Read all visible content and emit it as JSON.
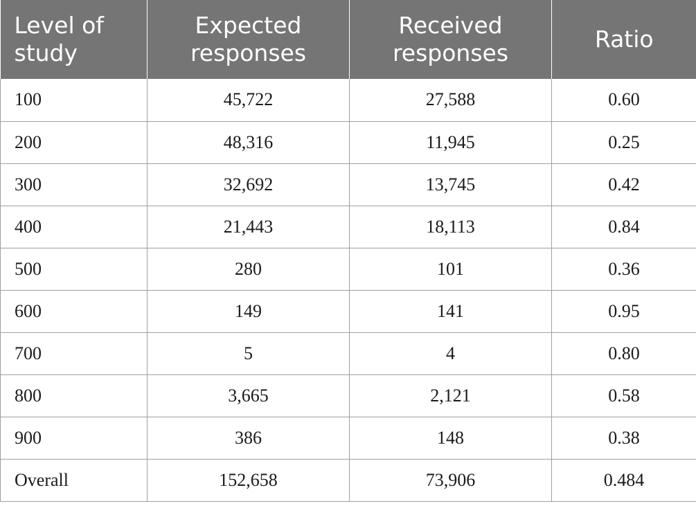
{
  "table": {
    "headers": [
      "Level of study",
      "Expected responses",
      "Received responses",
      "Ratio"
    ],
    "header_lines": [
      [
        "Level of",
        "study"
      ],
      [
        "Expected",
        "responses"
      ],
      [
        "Received",
        "responses"
      ],
      [
        "Ratio"
      ]
    ],
    "rows": [
      [
        "100",
        "45,722",
        "27,588",
        "0.60"
      ],
      [
        "200",
        "48,316",
        "11,945",
        "0.25"
      ],
      [
        "300",
        "32,692",
        "13,745",
        "0.42"
      ],
      [
        "400",
        "21,443",
        "18,113",
        "0.84"
      ],
      [
        "500",
        "280",
        "101",
        "0.36"
      ],
      [
        "600",
        "149",
        "141",
        "0.95"
      ],
      [
        "700",
        "5",
        "4",
        "0.80"
      ],
      [
        "800",
        "3,665",
        "2,121",
        "0.58"
      ],
      [
        "900",
        "386",
        "148",
        "0.38"
      ],
      [
        "Overall",
        "152,658",
        "73,906",
        "0.484"
      ]
    ]
  },
  "colors": {
    "header_background": "#757575",
    "header_text": "#ffffff",
    "grid_lines": "#9e9e9e"
  }
}
